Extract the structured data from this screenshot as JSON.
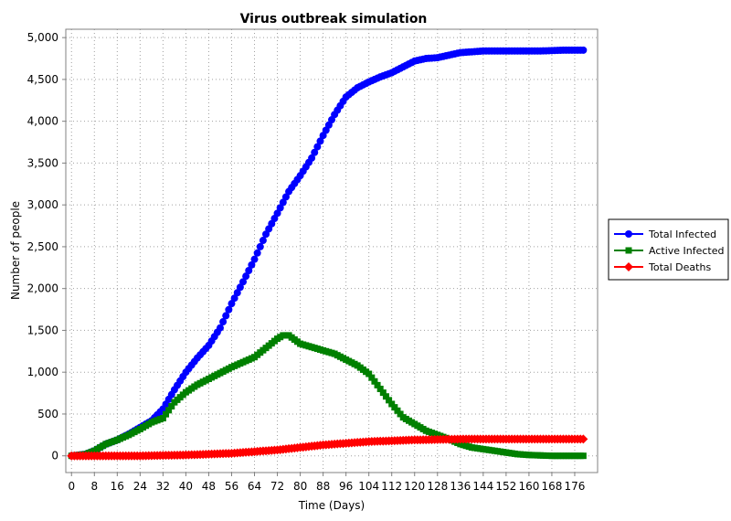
{
  "chart_data": {
    "type": "line",
    "title": "Virus outbreak simulation",
    "xlabel": "Time (Days)",
    "ylabel": "Number of people",
    "xlim": [
      -2,
      184
    ],
    "ylim": [
      -200,
      5100
    ],
    "x_ticks": [
      0,
      8,
      16,
      24,
      32,
      40,
      48,
      56,
      64,
      72,
      80,
      88,
      96,
      104,
      112,
      120,
      128,
      136,
      144,
      152,
      160,
      168,
      176
    ],
    "y_ticks": [
      0,
      500,
      1000,
      1500,
      2000,
      2500,
      3000,
      3500,
      4000,
      4500,
      5000
    ],
    "y_tick_labels": [
      "0",
      "500",
      "1,000",
      "1,500",
      "2,000",
      "2,500",
      "3,000",
      "3,500",
      "4,000",
      "4,500",
      "5,000"
    ],
    "grid": true,
    "legend_position": "right",
    "series": [
      {
        "name": "Total Infected",
        "color": "#0000ff",
        "marker": "circle",
        "x": [
          0,
          5,
          8,
          12,
          16,
          20,
          24,
          28,
          32,
          36,
          40,
          44,
          48,
          52,
          56,
          60,
          64,
          68,
          72,
          76,
          80,
          84,
          88,
          92,
          96,
          100,
          104,
          108,
          112,
          116,
          120,
          124,
          128,
          132,
          136,
          140,
          144,
          148,
          152,
          156,
          160,
          164,
          168,
          172,
          176,
          179
        ],
        "values": [
          0,
          20,
          60,
          140,
          190,
          260,
          340,
          420,
          560,
          790,
          1000,
          1170,
          1320,
          1530,
          1820,
          2080,
          2350,
          2650,
          2900,
          3160,
          3350,
          3560,
          3830,
          4080,
          4290,
          4400,
          4470,
          4530,
          4580,
          4650,
          4720,
          4750,
          4760,
          4790,
          4820,
          4830,
          4840,
          4840,
          4840,
          4840,
          4840,
          4840,
          4845,
          4850,
          4850,
          4850
        ]
      },
      {
        "name": "Active Infected",
        "color": "#008000",
        "marker": "square",
        "x": [
          0,
          5,
          8,
          12,
          16,
          20,
          24,
          28,
          32,
          36,
          40,
          44,
          48,
          52,
          56,
          60,
          64,
          68,
          72,
          74,
          76,
          80,
          84,
          88,
          92,
          96,
          100,
          104,
          108,
          112,
          116,
          120,
          124,
          128,
          132,
          136,
          140,
          144,
          148,
          152,
          156,
          160,
          164,
          168,
          172,
          176,
          179
        ],
        "values": [
          0,
          20,
          60,
          140,
          190,
          250,
          320,
          400,
          450,
          640,
          760,
          850,
          920,
          990,
          1060,
          1120,
          1180,
          1290,
          1400,
          1440,
          1440,
          1340,
          1300,
          1260,
          1220,
          1150,
          1080,
          980,
          800,
          620,
          460,
          380,
          300,
          250,
          200,
          140,
          100,
          80,
          60,
          40,
          20,
          10,
          5,
          0,
          0,
          0,
          0
        ]
      },
      {
        "name": "Total Deaths",
        "color": "#ff0000",
        "marker": "diamond",
        "x": [
          0,
          8,
          16,
          24,
          32,
          40,
          48,
          56,
          64,
          72,
          80,
          88,
          96,
          104,
          112,
          120,
          128,
          136,
          144,
          152,
          160,
          168,
          176,
          179
        ],
        "values": [
          0,
          0,
          0,
          0,
          5,
          10,
          20,
          30,
          50,
          70,
          100,
          130,
          150,
          170,
          180,
          190,
          195,
          200,
          200,
          200,
          200,
          200,
          200,
          200
        ]
      }
    ]
  }
}
